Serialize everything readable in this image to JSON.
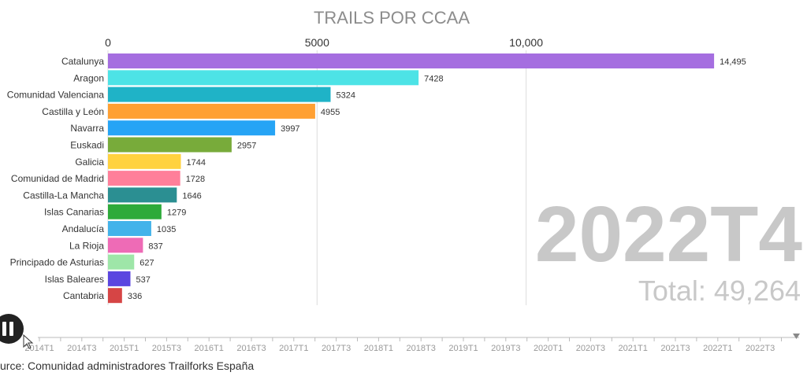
{
  "chart_data": {
    "type": "bar",
    "orientation": "horizontal",
    "title": "TRAILS POR CCAA",
    "xlabel": "",
    "ylabel": "",
    "x_ticks": [
      "0",
      "5000",
      "10,000"
    ],
    "x_tick_values": [
      0,
      5000,
      10000
    ],
    "xlim": [
      0,
      15000
    ],
    "categories": [
      "Catalunya",
      "Aragon",
      "Comunidad Valenciana",
      "Castilla y León",
      "Navarra",
      "Euskadi",
      "Galicia",
      "Comunidad de Madrid",
      "Castilla-La Mancha",
      "Islas Canarias",
      "Andalucía",
      "La Rioja",
      "Principado de Asturias",
      "Islas Baleares",
      "Cantabria"
    ],
    "values": [
      14495,
      7428,
      5324,
      4955,
      3997,
      2957,
      1744,
      1728,
      1646,
      1279,
      1035,
      837,
      627,
      537,
      336
    ],
    "value_labels": [
      "14,495",
      "7428",
      "5324",
      "4955",
      "3997",
      "2957",
      "1744",
      "1728",
      "1646",
      "1279",
      "1035",
      "837",
      "627",
      "537",
      "336"
    ],
    "colors": [
      "#a56ee0",
      "#4de3e6",
      "#1fb3c7",
      "#ffa033",
      "#26a4f5",
      "#78ab3a",
      "#ffd23f",
      "#ff7f9a",
      "#2b8f92",
      "#2eaa3a",
      "#43b3ea",
      "#ee6bb6",
      "#9ee6a8",
      "#5b46e0",
      "#d64545"
    ],
    "grid": true,
    "period": "2022T4",
    "total_label": "Total: 49,264"
  },
  "timeline": {
    "labels": [
      "2014T1",
      "2014T3",
      "2015T1",
      "2015T3",
      "2016T1",
      "2016T3",
      "2017T1",
      "2017T3",
      "2018T1",
      "2018T3",
      "2019T1",
      "2019T3",
      "2020T1",
      "2020T3",
      "2021T1",
      "2021T3",
      "2022T1",
      "2022T3"
    ]
  },
  "controls": {
    "pause_icon": "pause-icon",
    "timeline_end_icon": "triangle-down-icon"
  },
  "source": "urce: Comunidad administradores Trailforks España"
}
